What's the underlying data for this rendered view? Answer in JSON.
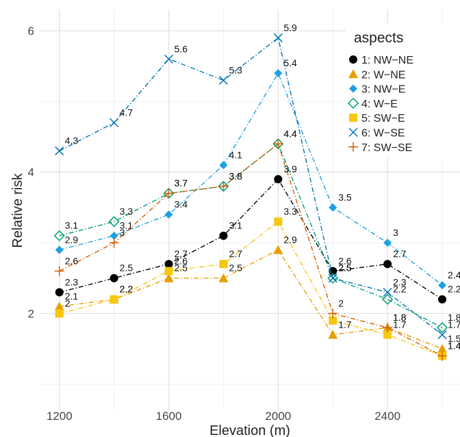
{
  "chart_data": {
    "type": "line",
    "x_label": "Elevation (m)",
    "y_label": "Relative risk",
    "legend_title": "aspects",
    "legend_position": "top-right",
    "grid": true,
    "x": [
      1200,
      1400,
      1600,
      1800,
      2000,
      2200,
      2400,
      2600
    ],
    "xlim": [
      1128,
      2665
    ],
    "xticks": [
      1200,
      1600,
      2000,
      2400
    ],
    "ylim": [
      0.63,
      6.3
    ],
    "yticks": [
      2,
      4,
      6
    ],
    "series": [
      {
        "name": "1: NW−NE",
        "color": "#000000",
        "marker": "circle",
        "values": [
          2.3,
          2.5,
          2.7,
          3.1,
          3.9,
          2.6,
          2.7,
          2.2
        ]
      },
      {
        "name": "2: W−NE",
        "color": "#e69f00",
        "marker": "triangle",
        "values": [
          2.1,
          2.2,
          2.5,
          2.5,
          2.9,
          1.7,
          1.8,
          1.5
        ]
      },
      {
        "name": "3: NW−E",
        "color": "#1f9fe3",
        "marker": "diamond",
        "values": [
          2.9,
          3.1,
          3.4,
          4.1,
          5.4,
          3.5,
          3,
          2.4
        ]
      },
      {
        "name": "4: W−E",
        "color": "#009e73",
        "marker": "open-diamond",
        "values": [
          3.1,
          3.3,
          3.7,
          3.8,
          4.4,
          2.5,
          2.2,
          1.8
        ]
      },
      {
        "name": "5: SW−E",
        "color": "#f5c710",
        "marker": "square",
        "values": [
          2,
          2.2,
          2.6,
          2.7,
          3.3,
          1.9,
          1.7,
          1.4
        ],
        "value_labels": [
          "2",
          "2.2",
          "2.6",
          "2.7",
          "3.3",
          null,
          "1.7",
          "1.4"
        ]
      },
      {
        "name": "6: W−SE",
        "color": "#0072b2",
        "marker": "cross",
        "values": [
          4.3,
          4.7,
          5.6,
          5.3,
          5.9,
          2.5,
          2.3,
          1.7
        ]
      },
      {
        "name": "7: SW−SE",
        "color": "#d55e00",
        "marker": "plus",
        "values": [
          2.6,
          3,
          3.7,
          3.8,
          4.4,
          2,
          1.8,
          1.4
        ]
      }
    ]
  }
}
